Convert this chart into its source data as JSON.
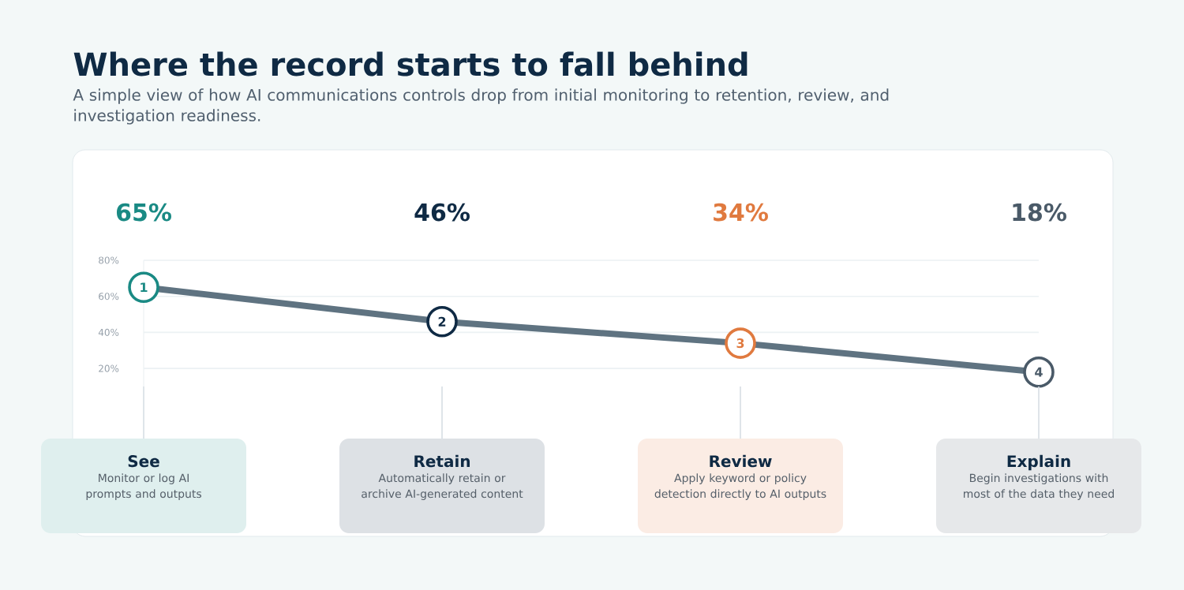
{
  "chart_data": {
    "type": "line",
    "title": "Where the record starts to fall behind",
    "subtitle": "A simple view of how AI communications controls drop from initial monitoring to retention, review, and investigation readiness.",
    "categories": [
      "See",
      "Retain",
      "Review",
      "Explain"
    ],
    "series": [
      {
        "color": "#5f7381",
        "colors": [
          "#1a8a84",
          "#0f2a44",
          "#e07a3f",
          "#4a5a68"
        ],
        "values": [
          65,
          46,
          34,
          18
        ],
        "value_labels": [
          "65%",
          "46%",
          "34%",
          "18%"
        ]
      }
    ],
    "ylim": [
      10,
      80
    ],
    "yticks": [
      {
        "value": 20,
        "label": "20%"
      },
      {
        "value": 40,
        "label": "40%"
      },
      {
        "value": 60,
        "label": "60%"
      },
      {
        "value": 80,
        "label": "80%"
      }
    ],
    "grid": "y",
    "marker": "circle",
    "line_style": "solid",
    "annotations": [
      {
        "text": "1",
        "x": "See",
        "y": 65
      },
      {
        "text": "2",
        "x": "Retain",
        "y": 46
      },
      {
        "text": "3",
        "x": "Review",
        "y": 34
      },
      {
        "text": "4",
        "x": "Explain",
        "y": 18
      },
      "Monitor or log AI prompts and outputs",
      "Automatically retain or archive AI-generated content",
      "Apply keyword or policy detection directly to AI outputs",
      "Begin investigations with most of the data they need"
    ]
  }
}
